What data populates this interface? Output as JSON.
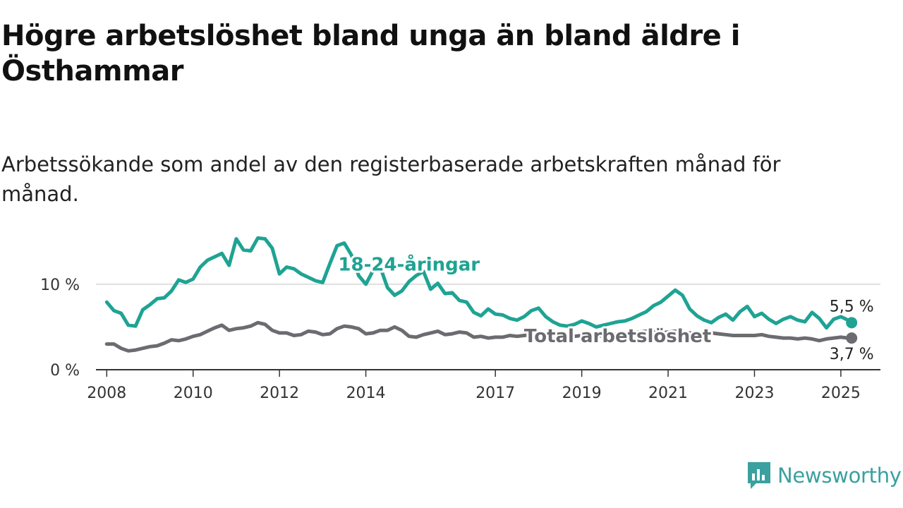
{
  "title": "Högre arbetslöshet bland unga än bland äldre i Östhammar",
  "subtitle": "Arbetssökande som andel av den registerbaserade arbetskraften månad för månad.",
  "brand": {
    "name": "Newsworthy",
    "logo_icon": "bar-chart-speech-bubble-icon",
    "color": "#3aa0a0"
  },
  "chart_data": {
    "type": "line",
    "title": "Högre arbetslöshet bland unga än bland äldre i Östhammar",
    "subtitle": "Arbetssökande som andel av den registerbaserade arbetskraften månad för månad.",
    "x_axis": {
      "type": "date",
      "range": [
        "2007-10",
        "2025-12"
      ],
      "ticks": [
        "2008",
        "2010",
        "2012",
        "2014",
        "2017",
        "2019",
        "2021",
        "2023",
        "2025"
      ]
    },
    "y_axis": {
      "range": [
        0,
        16
      ],
      "ticks": [
        {
          "value": 0,
          "label": "0 %"
        },
        {
          "value": 10,
          "label": "10 %"
        }
      ],
      "unit": "%"
    },
    "grid": "horizontal",
    "legend": "inline labels",
    "series": [
      {
        "name": "18-24-åringar",
        "color": "#1fa393",
        "end_label": "5,5 %",
        "points": [
          [
            "2008-01",
            7.9
          ],
          [
            "2008-03",
            6.9
          ],
          [
            "2008-05",
            6.6
          ],
          [
            "2008-07",
            5.2
          ],
          [
            "2008-09",
            5.1
          ],
          [
            "2008-11",
            7.0
          ],
          [
            "2009-01",
            7.6
          ],
          [
            "2009-03",
            8.3
          ],
          [
            "2009-05",
            8.4
          ],
          [
            "2009-07",
            9.2
          ],
          [
            "2009-09",
            10.5
          ],
          [
            "2009-11",
            10.2
          ],
          [
            "2010-01",
            10.6
          ],
          [
            "2010-03",
            12.0
          ],
          [
            "2010-05",
            12.8
          ],
          [
            "2010-07",
            13.2
          ],
          [
            "2010-09",
            13.6
          ],
          [
            "2010-11",
            12.2
          ],
          [
            "2011-01",
            15.3
          ],
          [
            "2011-03",
            14.0
          ],
          [
            "2011-05",
            13.9
          ],
          [
            "2011-07",
            15.4
          ],
          [
            "2011-09",
            15.3
          ],
          [
            "2011-11",
            14.2
          ],
          [
            "2012-01",
            11.2
          ],
          [
            "2012-03",
            12.0
          ],
          [
            "2012-05",
            11.8
          ],
          [
            "2012-07",
            11.2
          ],
          [
            "2012-09",
            10.8
          ],
          [
            "2012-11",
            10.4
          ],
          [
            "2013-01",
            10.2
          ],
          [
            "2013-03",
            12.4
          ],
          [
            "2013-05",
            14.5
          ],
          [
            "2013-07",
            14.8
          ],
          [
            "2013-09",
            13.4
          ],
          [
            "2013-11",
            11.0
          ],
          [
            "2014-01",
            10.0
          ],
          [
            "2014-03",
            11.6
          ],
          [
            "2014-05",
            12.0
          ],
          [
            "2014-07",
            9.6
          ],
          [
            "2014-09",
            8.7
          ],
          [
            "2014-11",
            9.2
          ],
          [
            "2015-01",
            10.3
          ],
          [
            "2015-03",
            11.0
          ],
          [
            "2015-05",
            11.5
          ],
          [
            "2015-07",
            9.4
          ],
          [
            "2015-09",
            10.1
          ],
          [
            "2015-11",
            8.9
          ],
          [
            "2016-01",
            9.0
          ],
          [
            "2016-03",
            8.1
          ],
          [
            "2016-05",
            7.9
          ],
          [
            "2016-07",
            6.7
          ],
          [
            "2016-09",
            6.3
          ],
          [
            "2016-11",
            7.1
          ],
          [
            "2017-01",
            6.5
          ],
          [
            "2017-03",
            6.4
          ],
          [
            "2017-05",
            6.0
          ],
          [
            "2017-07",
            5.8
          ],
          [
            "2017-09",
            6.2
          ],
          [
            "2017-11",
            6.9
          ],
          [
            "2018-01",
            7.2
          ],
          [
            "2018-03",
            6.2
          ],
          [
            "2018-05",
            5.6
          ],
          [
            "2018-07",
            5.2
          ],
          [
            "2018-09",
            5.1
          ],
          [
            "2018-11",
            5.3
          ],
          [
            "2019-01",
            5.7
          ],
          [
            "2019-03",
            5.4
          ],
          [
            "2019-05",
            5.0
          ],
          [
            "2019-07",
            5.2
          ],
          [
            "2019-09",
            5.4
          ],
          [
            "2019-11",
            5.6
          ],
          [
            "2020-01",
            5.7
          ],
          [
            "2020-03",
            6.0
          ],
          [
            "2020-05",
            6.4
          ],
          [
            "2020-07",
            6.8
          ],
          [
            "2020-09",
            7.5
          ],
          [
            "2020-11",
            7.9
          ],
          [
            "2021-01",
            8.6
          ],
          [
            "2021-03",
            9.3
          ],
          [
            "2021-05",
            8.7
          ],
          [
            "2021-07",
            7.1
          ],
          [
            "2021-09",
            6.3
          ],
          [
            "2021-11",
            5.8
          ],
          [
            "2022-01",
            5.5
          ],
          [
            "2022-03",
            6.1
          ],
          [
            "2022-05",
            6.5
          ],
          [
            "2022-07",
            5.8
          ],
          [
            "2022-09",
            6.8
          ],
          [
            "2022-11",
            7.4
          ],
          [
            "2023-01",
            6.2
          ],
          [
            "2023-03",
            6.6
          ],
          [
            "2023-05",
            5.9
          ],
          [
            "2023-07",
            5.4
          ],
          [
            "2023-09",
            5.9
          ],
          [
            "2023-11",
            6.2
          ],
          [
            "2024-01",
            5.8
          ],
          [
            "2024-03",
            5.6
          ],
          [
            "2024-05",
            6.7
          ],
          [
            "2024-07",
            6.0
          ],
          [
            "2024-09",
            4.9
          ],
          [
            "2024-11",
            5.9
          ],
          [
            "2025-01",
            6.2
          ],
          [
            "2025-03",
            5.8
          ],
          [
            "2025-04",
            5.5
          ]
        ]
      },
      {
        "name": "Total arbetslöshet",
        "color": "#6b6b70",
        "end_label": "3,7 %",
        "points": [
          [
            "2008-01",
            3.0
          ],
          [
            "2008-03",
            3.0
          ],
          [
            "2008-05",
            2.5
          ],
          [
            "2008-07",
            2.2
          ],
          [
            "2008-09",
            2.3
          ],
          [
            "2008-11",
            2.5
          ],
          [
            "2009-01",
            2.7
          ],
          [
            "2009-03",
            2.8
          ],
          [
            "2009-05",
            3.1
          ],
          [
            "2009-07",
            3.5
          ],
          [
            "2009-09",
            3.4
          ],
          [
            "2009-11",
            3.6
          ],
          [
            "2010-01",
            3.9
          ],
          [
            "2010-03",
            4.1
          ],
          [
            "2010-05",
            4.5
          ],
          [
            "2010-07",
            4.9
          ],
          [
            "2010-09",
            5.2
          ],
          [
            "2010-11",
            4.6
          ],
          [
            "2011-01",
            4.8
          ],
          [
            "2011-03",
            4.9
          ],
          [
            "2011-05",
            5.1
          ],
          [
            "2011-07",
            5.5
          ],
          [
            "2011-09",
            5.3
          ],
          [
            "2011-11",
            4.6
          ],
          [
            "2012-01",
            4.3
          ],
          [
            "2012-03",
            4.3
          ],
          [
            "2012-05",
            4.0
          ],
          [
            "2012-07",
            4.1
          ],
          [
            "2012-09",
            4.5
          ],
          [
            "2012-11",
            4.4
          ],
          [
            "2013-01",
            4.1
          ],
          [
            "2013-03",
            4.2
          ],
          [
            "2013-05",
            4.8
          ],
          [
            "2013-07",
            5.1
          ],
          [
            "2013-09",
            5.0
          ],
          [
            "2013-11",
            4.8
          ],
          [
            "2014-01",
            4.2
          ],
          [
            "2014-03",
            4.3
          ],
          [
            "2014-05",
            4.6
          ],
          [
            "2014-07",
            4.6
          ],
          [
            "2014-09",
            5.0
          ],
          [
            "2014-11",
            4.6
          ],
          [
            "2015-01",
            3.9
          ],
          [
            "2015-03",
            3.8
          ],
          [
            "2015-05",
            4.1
          ],
          [
            "2015-07",
            4.3
          ],
          [
            "2015-09",
            4.5
          ],
          [
            "2015-11",
            4.1
          ],
          [
            "2016-01",
            4.2
          ],
          [
            "2016-03",
            4.4
          ],
          [
            "2016-05",
            4.3
          ],
          [
            "2016-07",
            3.8
          ],
          [
            "2016-09",
            3.9
          ],
          [
            "2016-11",
            3.7
          ],
          [
            "2017-01",
            3.8
          ],
          [
            "2017-03",
            3.8
          ],
          [
            "2017-05",
            4.0
          ],
          [
            "2017-07",
            3.9
          ],
          [
            "2017-09",
            4.0
          ],
          [
            "2017-11",
            4.1
          ],
          [
            "2018-01",
            4.2
          ],
          [
            "2018-03",
            4.0
          ],
          [
            "2018-05",
            4.1
          ],
          [
            "2018-07",
            3.9
          ],
          [
            "2018-09",
            3.8
          ],
          [
            "2018-11",
            3.9
          ],
          [
            "2019-01",
            4.0
          ],
          [
            "2019-03",
            4.0
          ],
          [
            "2019-05",
            3.9
          ],
          [
            "2019-07",
            4.0
          ],
          [
            "2019-09",
            4.1
          ],
          [
            "2019-11",
            4.2
          ],
          [
            "2020-01",
            4.2
          ],
          [
            "2020-03",
            4.3
          ],
          [
            "2020-05",
            4.4
          ],
          [
            "2020-07",
            4.5
          ],
          [
            "2020-09",
            4.4
          ],
          [
            "2020-11",
            4.3
          ],
          [
            "2021-01",
            4.4
          ],
          [
            "2021-03",
            4.5
          ],
          [
            "2021-05",
            4.4
          ],
          [
            "2021-07",
            4.3
          ],
          [
            "2021-09",
            4.2
          ],
          [
            "2021-11",
            4.2
          ],
          [
            "2022-01",
            4.3
          ],
          [
            "2022-03",
            4.2
          ],
          [
            "2022-05",
            4.1
          ],
          [
            "2022-07",
            4.0
          ],
          [
            "2022-09",
            4.0
          ],
          [
            "2022-11",
            4.0
          ],
          [
            "2023-01",
            4.0
          ],
          [
            "2023-03",
            4.1
          ],
          [
            "2023-05",
            3.9
          ],
          [
            "2023-07",
            3.8
          ],
          [
            "2023-09",
            3.7
          ],
          [
            "2023-11",
            3.7
          ],
          [
            "2024-01",
            3.6
          ],
          [
            "2024-03",
            3.7
          ],
          [
            "2024-05",
            3.6
          ],
          [
            "2024-07",
            3.4
          ],
          [
            "2024-09",
            3.6
          ],
          [
            "2024-11",
            3.7
          ],
          [
            "2025-01",
            3.8
          ],
          [
            "2025-03",
            3.7
          ],
          [
            "2025-04",
            3.7
          ]
        ]
      }
    ]
  }
}
